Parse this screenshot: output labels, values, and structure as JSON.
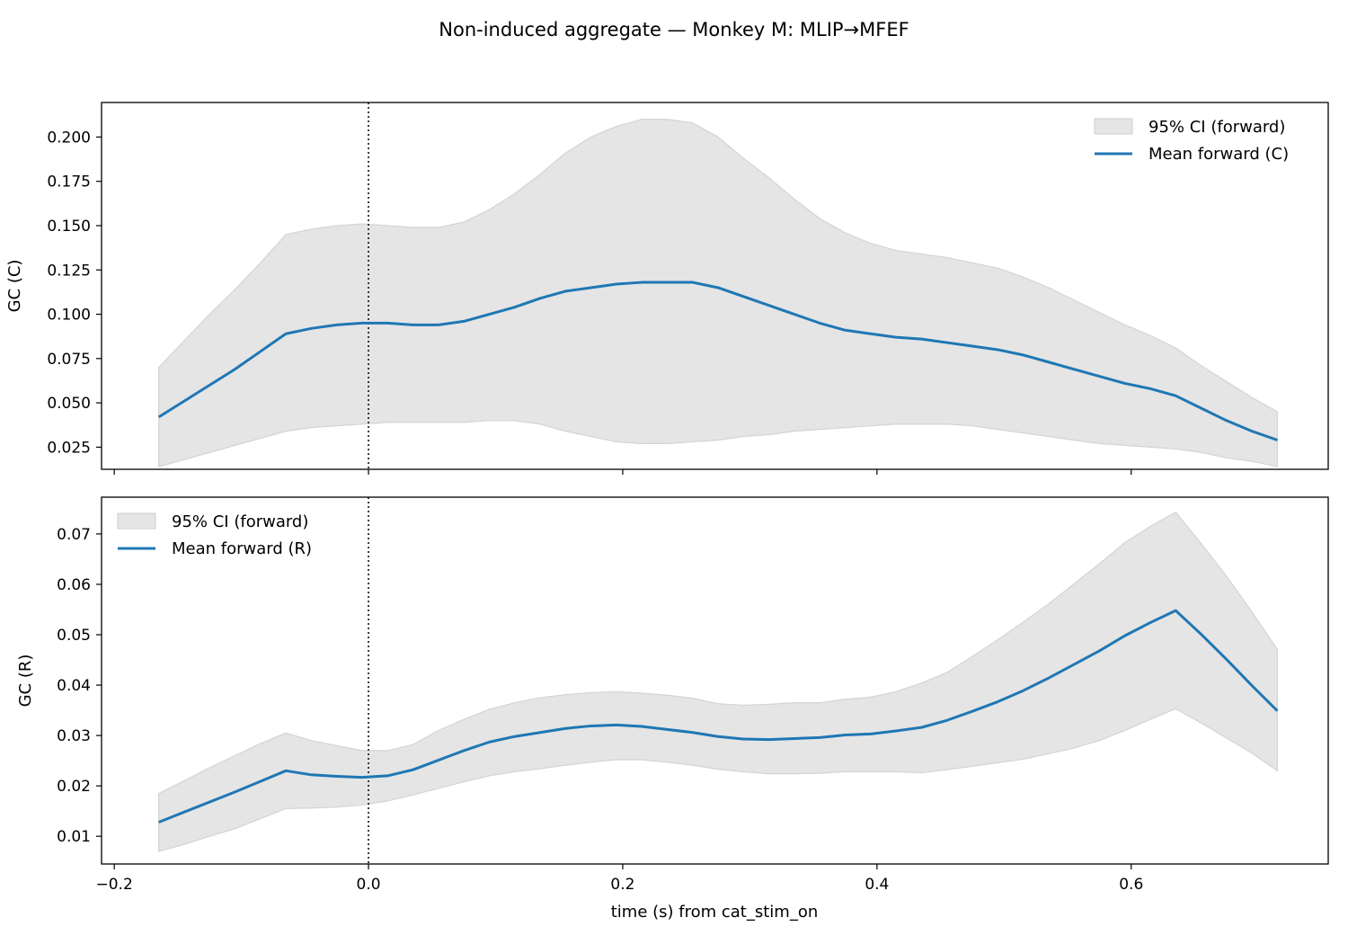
{
  "figure": {
    "title": "Non-induced aggregate — Monkey M: MLIP→MFEF",
    "xlabel": "time (s) from cat_stim_on",
    "colors": {
      "line": "#1f77b4",
      "band": "#e5e5e5",
      "band_edge": "#d4d4d4",
      "axes": "#000000"
    }
  },
  "chart_data": [
    {
      "type": "line",
      "ylabel": "GC (C)",
      "xlim": [
        -0.21,
        0.755
      ],
      "ylim": [
        0.0125,
        0.2195
      ],
      "xticks": [
        -0.2,
        0.0,
        0.2,
        0.4,
        0.6
      ],
      "xtick_labels_visible": false,
      "yticks": [
        0.025,
        0.05,
        0.075,
        0.1,
        0.125,
        0.15,
        0.175,
        0.2
      ],
      "ytick_labels": [
        "0.025",
        "0.050",
        "0.075",
        "0.100",
        "0.125",
        "0.150",
        "0.175",
        "0.200"
      ],
      "vline_x": 0.0,
      "legend_position": "upper right",
      "legend": {
        "band": "95% CI (forward)",
        "line": "Mean forward (C)"
      },
      "x": [
        -0.165,
        -0.145,
        -0.125,
        -0.105,
        -0.085,
        -0.065,
        -0.045,
        -0.025,
        -0.005,
        0.015,
        0.035,
        0.055,
        0.075,
        0.095,
        0.115,
        0.135,
        0.155,
        0.175,
        0.195,
        0.215,
        0.235,
        0.255,
        0.275,
        0.295,
        0.315,
        0.335,
        0.355,
        0.375,
        0.395,
        0.415,
        0.435,
        0.455,
        0.475,
        0.495,
        0.515,
        0.535,
        0.555,
        0.575,
        0.595,
        0.615,
        0.635,
        0.655,
        0.675,
        0.695,
        0.715
      ],
      "mean": [
        0.042,
        0.051,
        0.06,
        0.069,
        0.079,
        0.089,
        0.092,
        0.094,
        0.095,
        0.095,
        0.094,
        0.094,
        0.096,
        0.1,
        0.104,
        0.109,
        0.113,
        0.115,
        0.117,
        0.118,
        0.118,
        0.118,
        0.115,
        0.11,
        0.105,
        0.1,
        0.095,
        0.091,
        0.089,
        0.087,
        0.086,
        0.084,
        0.082,
        0.08,
        0.077,
        0.073,
        0.069,
        0.065,
        0.061,
        0.058,
        0.054,
        0.047,
        0.04,
        0.034,
        0.029
      ],
      "ci_upper": [
        0.07,
        0.085,
        0.1,
        0.114,
        0.129,
        0.145,
        0.148,
        0.15,
        0.151,
        0.15,
        0.149,
        0.149,
        0.152,
        0.159,
        0.168,
        0.179,
        0.191,
        0.2,
        0.206,
        0.21,
        0.21,
        0.208,
        0.2,
        0.188,
        0.177,
        0.165,
        0.154,
        0.146,
        0.14,
        0.136,
        0.134,
        0.132,
        0.129,
        0.126,
        0.121,
        0.115,
        0.108,
        0.101,
        0.094,
        0.088,
        0.081,
        0.071,
        0.062,
        0.053,
        0.045
      ],
      "ci_lower": [
        0.014,
        0.018,
        0.022,
        0.026,
        0.03,
        0.034,
        0.036,
        0.037,
        0.038,
        0.039,
        0.039,
        0.039,
        0.039,
        0.04,
        0.04,
        0.038,
        0.034,
        0.031,
        0.028,
        0.027,
        0.027,
        0.028,
        0.029,
        0.031,
        0.032,
        0.034,
        0.035,
        0.036,
        0.037,
        0.038,
        0.038,
        0.038,
        0.037,
        0.035,
        0.033,
        0.031,
        0.029,
        0.027,
        0.026,
        0.025,
        0.024,
        0.022,
        0.019,
        0.017,
        0.014
      ]
    },
    {
      "type": "line",
      "ylabel": "GC (R)",
      "xlim": [
        -0.21,
        0.755
      ],
      "ylim": [
        0.0045,
        0.0773
      ],
      "xticks": [
        -0.2,
        0.0,
        0.2,
        0.4,
        0.6
      ],
      "xtick_labels": [
        "−0.2",
        "0.0",
        "0.2",
        "0.4",
        "0.6"
      ],
      "xtick_labels_visible": true,
      "yticks": [
        0.01,
        0.02,
        0.03,
        0.04,
        0.05,
        0.06,
        0.07
      ],
      "ytick_labels": [
        "0.01",
        "0.02",
        "0.03",
        "0.04",
        "0.05",
        "0.06",
        "0.07"
      ],
      "vline_x": 0.0,
      "legend_position": "upper left",
      "legend": {
        "band": "95% CI (forward)",
        "line": "Mean forward (R)"
      },
      "x": [
        -0.165,
        -0.145,
        -0.125,
        -0.105,
        -0.085,
        -0.065,
        -0.045,
        -0.025,
        -0.005,
        0.015,
        0.035,
        0.055,
        0.075,
        0.095,
        0.115,
        0.135,
        0.155,
        0.175,
        0.195,
        0.215,
        0.235,
        0.255,
        0.275,
        0.295,
        0.315,
        0.335,
        0.355,
        0.375,
        0.395,
        0.415,
        0.435,
        0.455,
        0.475,
        0.495,
        0.515,
        0.535,
        0.555,
        0.575,
        0.595,
        0.615,
        0.635,
        0.655,
        0.675,
        0.695,
        0.715
      ],
      "mean": [
        0.0128,
        0.0148,
        0.0168,
        0.0188,
        0.0209,
        0.023,
        0.0222,
        0.0219,
        0.0217,
        0.022,
        0.0232,
        0.0251,
        0.027,
        0.0287,
        0.0298,
        0.0306,
        0.0314,
        0.0319,
        0.0321,
        0.0318,
        0.0312,
        0.0306,
        0.0298,
        0.0293,
        0.0292,
        0.0294,
        0.0296,
        0.0301,
        0.0303,
        0.0309,
        0.0316,
        0.033,
        0.0348,
        0.0367,
        0.0389,
        0.0414,
        0.0441,
        0.0468,
        0.0498,
        0.0524,
        0.0548,
        0.0501,
        0.0451,
        0.0399,
        0.0349
      ],
      "ci_upper": [
        0.0185,
        0.021,
        0.0236,
        0.026,
        0.0284,
        0.0305,
        0.029,
        0.028,
        0.027,
        0.027,
        0.0282,
        0.031,
        0.0332,
        0.0352,
        0.0365,
        0.0375,
        0.0381,
        0.0385,
        0.0387,
        0.0384,
        0.038,
        0.0374,
        0.0363,
        0.036,
        0.0362,
        0.0365,
        0.0365,
        0.0372,
        0.0376,
        0.0387,
        0.0404,
        0.0425,
        0.0457,
        0.049,
        0.0525,
        0.0561,
        0.0601,
        0.0641,
        0.0683,
        0.0715,
        0.0743,
        0.0681,
        0.0616,
        0.0545,
        0.0471
      ],
      "ci_lower": [
        0.007,
        0.0084,
        0.01,
        0.0115,
        0.0135,
        0.0155,
        0.0156,
        0.0158,
        0.0162,
        0.017,
        0.0182,
        0.0195,
        0.0208,
        0.022,
        0.0228,
        0.0234,
        0.0241,
        0.0247,
        0.0252,
        0.0252,
        0.0247,
        0.0241,
        0.0233,
        0.0228,
        0.0224,
        0.0224,
        0.0225,
        0.0228,
        0.0228,
        0.0228,
        0.0226,
        0.0232,
        0.0239,
        0.0246,
        0.0253,
        0.0264,
        0.0275,
        0.029,
        0.031,
        0.0332,
        0.0353,
        0.0325,
        0.0295,
        0.0265,
        0.023
      ]
    }
  ]
}
